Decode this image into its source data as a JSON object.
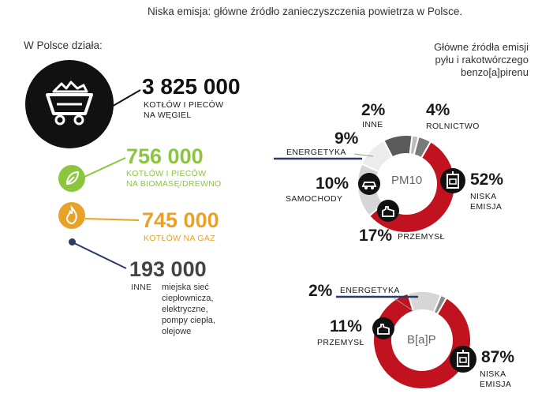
{
  "title": "Niska emisja: główne źródło zanieczyszczenia powietrza w Polsce.",
  "intro": "W Polsce działa:",
  "colors": {
    "black": "#111111",
    "green": "#8cc63f",
    "orange": "#e8a228",
    "navy": "#2b3a67",
    "red": "#c1121f",
    "grey": "#777777",
    "lightgrey": "#d6d6d6"
  },
  "stats": [
    {
      "value": "3 825 000",
      "label_line1": "KOTŁÓW I PIECÓW",
      "label_line2": "NA WĘGIEL",
      "icon": "coal-cart-icon"
    },
    {
      "value": "756 000",
      "label_line1": "KOTŁÓW I PIECÓW",
      "label_line2": "NA BIOMASĘ/DREWNO",
      "icon": "leaf-icon"
    },
    {
      "value": "745 000",
      "label_line1": "KOTŁÓW NA GAZ",
      "label_line2": "",
      "icon": "flame-icon"
    },
    {
      "value": "193 000",
      "label_line1": "INNE",
      "label_line2": "",
      "icon": "dot-icon",
      "detail": [
        "miejska sieć",
        "ciepłownicza,",
        "elektryczne,",
        "pompy ciepła,",
        "olejowe"
      ]
    }
  ],
  "right_heading": [
    "Główne źródła emisji",
    "pyłu i rakotwórczego",
    "benzo[a]pirenu"
  ],
  "pm10": {
    "center_label": "PM10",
    "segments": [
      {
        "name": "NISKA EMISJA",
        "value": 52,
        "pct": "52%",
        "label_line1": "NISKA",
        "label_line2": "EMISJA"
      },
      {
        "name": "PRZEMYSŁ",
        "value": 17,
        "pct": "17%",
        "label": "PRZEMYSŁ"
      },
      {
        "name": "SAMOCHODY",
        "value": 10,
        "pct": "10%",
        "label": "SAMOCHODY"
      },
      {
        "name": "ENERGETYKA",
        "value": 9,
        "pct": "9%",
        "label": "ENERGETYKA"
      },
      {
        "name": "INNE",
        "value": 2,
        "pct": "2%",
        "label": "INNE"
      },
      {
        "name": "ROLNICTWO",
        "value": 4,
        "pct": "4%",
        "label": "ROLNICTWO"
      }
    ]
  },
  "bap": {
    "center_label": "B[a]P",
    "segments": [
      {
        "name": "NISKA EMISJA",
        "value": 87,
        "pct": "87%",
        "label_line1": "NISKA",
        "label_line2": "EMISJA"
      },
      {
        "name": "PRZEMYSŁ",
        "value": 11,
        "pct": "11%",
        "label": "PRZEMYSŁ"
      },
      {
        "name": "ENERGETYKA",
        "value": 2,
        "pct": "2%",
        "label": "ENERGETYKA"
      }
    ]
  }
}
